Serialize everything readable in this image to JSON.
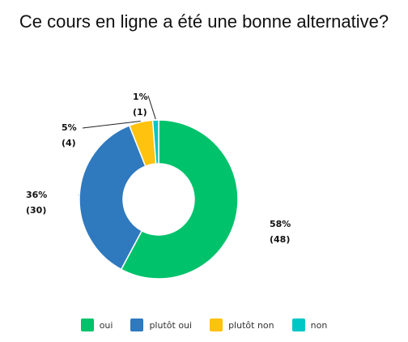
{
  "chart_data": {
    "type": "pie",
    "title": "Ce cours en ligne a été une bonne alternative?",
    "donut": true,
    "categories": [
      "oui",
      "plutôt oui",
      "plutôt non",
      "non"
    ],
    "values": [
      48,
      30,
      4,
      1
    ],
    "percent_labels": [
      "58%",
      "36%",
      "5%",
      "1%"
    ],
    "count_labels": [
      "(48)",
      "(30)",
      "(4)",
      "(1)"
    ],
    "colors": [
      "#00c26b",
      "#2f79bf",
      "#ffc20e",
      "#00c7c7"
    ],
    "legend_position": "bottom"
  }
}
